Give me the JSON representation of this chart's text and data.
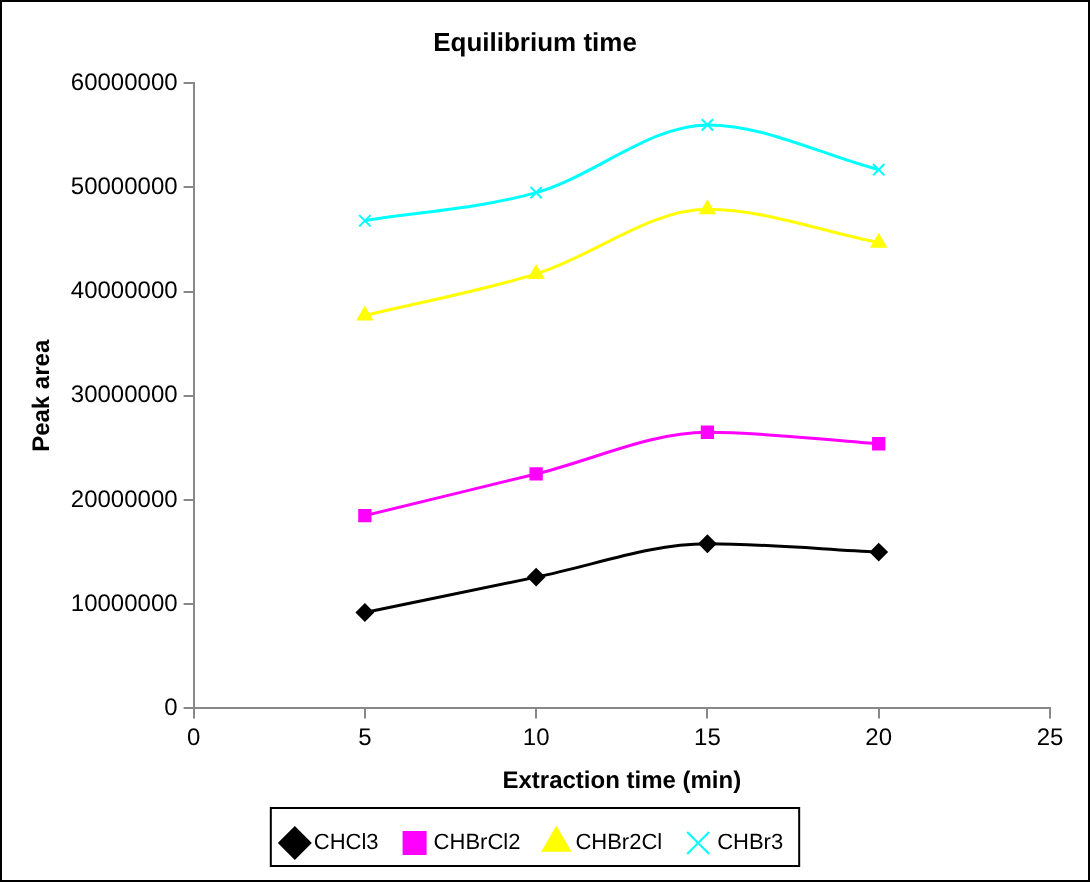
{
  "chart_data": {
    "type": "line",
    "title": "Equilibrium time",
    "xlabel": "Extraction time (min)",
    "ylabel": "Peak area",
    "x": [
      5,
      10,
      15,
      20
    ],
    "xlim": [
      0,
      25
    ],
    "xticks": [
      0,
      5,
      10,
      15,
      20,
      25
    ],
    "ylim": [
      0,
      60000000
    ],
    "yticks": [
      0,
      10000000,
      20000000,
      30000000,
      40000000,
      50000000,
      60000000
    ],
    "grid": false,
    "legend": "bottom",
    "series": [
      {
        "name": "CHCl3",
        "color": "#000000",
        "marker": "diamond",
        "values": [
          9200000,
          12600000,
          15800000,
          15000000
        ]
      },
      {
        "name": "CHBrCl2",
        "color": "#ff00ff",
        "marker": "square",
        "values": [
          18500000,
          22500000,
          26500000,
          25400000
        ]
      },
      {
        "name": "CHBr2Cl",
        "color": "#ffff00",
        "marker": "triangle",
        "values": [
          37700000,
          41700000,
          47900000,
          44700000
        ]
      },
      {
        "name": "CHBr3",
        "color": "#00ffff",
        "marker": "cross",
        "values": [
          46800000,
          49500000,
          56000000,
          51700000
        ]
      }
    ]
  }
}
